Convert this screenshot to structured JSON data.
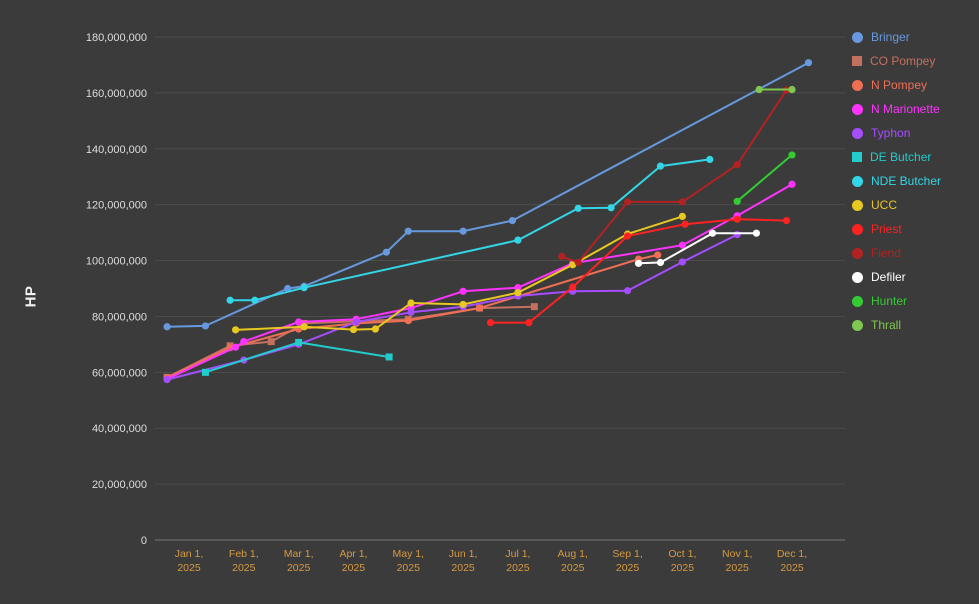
{
  "chart": {
    "background": "#3b3b3b",
    "grid_color": "#4d4d4d",
    "axis_zero_color": "#777777",
    "y_text_color": "#dddddd",
    "x_text_color": "#d79a3f"
  },
  "chart_data": {
    "type": "line",
    "title": "",
    "xlabel": "",
    "ylabel": "HP",
    "ylim": [
      0,
      180000000
    ],
    "ytick_step": 20000000,
    "grid": "horizontal",
    "legend_position": "right",
    "x_unit": "month_index_0_is_jan_1_2025",
    "y_tick_labels": [
      "0",
      "20,000,000",
      "40,000,000",
      "60,000,000",
      "80,000,000",
      "100,000,000",
      "120,000,000",
      "140,000,000",
      "160,000,000",
      "180,000,000"
    ],
    "x_tick_labels": [
      {
        "line1": "Jan 1,",
        "line2": "2025"
      },
      {
        "line1": "Feb 1,",
        "line2": "2025"
      },
      {
        "line1": "Mar 1,",
        "line2": "2025"
      },
      {
        "line1": "Apr 1,",
        "line2": "2025"
      },
      {
        "line1": "May 1,",
        "line2": "2025"
      },
      {
        "line1": "Jun 1,",
        "line2": "2025"
      },
      {
        "line1": "Jul 1,",
        "line2": "2025"
      },
      {
        "line1": "Aug 1,",
        "line2": "2025"
      },
      {
        "line1": "Sep 1,",
        "line2": "2025"
      },
      {
        "line1": "Oct 1,",
        "line2": "2025"
      },
      {
        "line1": "Nov 1,",
        "line2": "2025"
      },
      {
        "line1": "Dec 1,",
        "line2": "2025"
      }
    ],
    "series": [
      {
        "name": "Bringer",
        "color": "#6699dd",
        "marker": "circle",
        "points": [
          [
            -0.4,
            76300000
          ],
          [
            0.3,
            76600000
          ],
          [
            1.8,
            90000000
          ],
          [
            2.1,
            90800000
          ],
          [
            3.6,
            103000000
          ],
          [
            4.0,
            110500000
          ],
          [
            5.0,
            110500000
          ],
          [
            5.9,
            114300000
          ],
          [
            11.3,
            170800000
          ]
        ]
      },
      {
        "name": "CO Pompey",
        "color": "#c4705f",
        "marker": "square",
        "points": [
          [
            -0.4,
            58200000
          ],
          [
            0.75,
            69500000
          ],
          [
            1.5,
            71000000
          ],
          [
            2.1,
            77500000
          ],
          [
            4.0,
            79000000
          ],
          [
            5.3,
            83000000
          ],
          [
            6.3,
            83500000
          ]
        ]
      },
      {
        "name": "N Pompey",
        "color": "#ef6f55",
        "marker": "circle",
        "points": [
          [
            -0.4,
            58000000
          ],
          [
            0.75,
            68800000
          ],
          [
            2.0,
            75500000
          ],
          [
            3.05,
            77500000
          ],
          [
            4.0,
            78500000
          ],
          [
            5.3,
            83000000
          ],
          [
            8.2,
            100500000
          ],
          [
            8.55,
            102000000
          ]
        ]
      },
      {
        "name": "N Marionette",
        "color": "#ff33ff",
        "marker": "circle",
        "points": [
          [
            -0.4,
            57600000
          ],
          [
            0.85,
            69000000
          ],
          [
            1.0,
            71000000
          ],
          [
            2.0,
            78000000
          ],
          [
            3.05,
            79000000
          ],
          [
            4.05,
            83000000
          ],
          [
            5.0,
            89000000
          ],
          [
            6.0,
            90300000
          ],
          [
            7.0,
            99000000
          ],
          [
            9.0,
            105500000
          ],
          [
            10.0,
            116000000
          ],
          [
            11.0,
            127300000
          ]
        ]
      },
      {
        "name": "Typhon",
        "color": "#a64dff",
        "marker": "circle",
        "points": [
          [
            -0.4,
            57400000
          ],
          [
            1.0,
            64400000
          ],
          [
            2.0,
            70000000
          ],
          [
            3.05,
            78000000
          ],
          [
            4.05,
            81500000
          ],
          [
            5.0,
            83500000
          ],
          [
            6.0,
            87300000
          ],
          [
            7.0,
            89000000
          ],
          [
            8.0,
            89200000
          ],
          [
            9.0,
            99500000
          ],
          [
            10.0,
            109300000
          ]
        ]
      },
      {
        "name": "DE Butcher",
        "color": "#22cccc",
        "marker": "square",
        "points": [
          [
            0.3,
            60000000
          ],
          [
            2.0,
            70700000
          ],
          [
            3.65,
            65500000
          ]
        ]
      },
      {
        "name": "NDE Butcher",
        "color": "#33d6e6",
        "marker": "circle",
        "points": [
          [
            0.75,
            85800000
          ],
          [
            1.2,
            85800000
          ],
          [
            2.1,
            90300000
          ],
          [
            6.0,
            107300000
          ],
          [
            7.1,
            118700000
          ],
          [
            7.7,
            118900000
          ],
          [
            8.6,
            133800000
          ],
          [
            9.5,
            136200000
          ]
        ]
      },
      {
        "name": "UCC",
        "color": "#e8c820",
        "marker": "circle",
        "points": [
          [
            0.85,
            75200000
          ],
          [
            2.1,
            76300000
          ],
          [
            3.0,
            75300000
          ],
          [
            3.4,
            75500000
          ],
          [
            4.05,
            84800000
          ],
          [
            5.0,
            84300000
          ],
          [
            6.0,
            88500000
          ],
          [
            7.0,
            98500000
          ],
          [
            8.0,
            109500000
          ],
          [
            9.0,
            115800000
          ]
        ]
      },
      {
        "name": "Priest",
        "color": "#ff2222",
        "marker": "circle",
        "points": [
          [
            5.5,
            77800000
          ],
          [
            6.2,
            77800000
          ],
          [
            7.0,
            90500000
          ],
          [
            8.0,
            108800000
          ],
          [
            9.05,
            113000000
          ],
          [
            10.0,
            114800000
          ],
          [
            10.9,
            114300000
          ]
        ]
      },
      {
        "name": "Fiend",
        "color": "#b22222",
        "marker": "circle",
        "points": [
          [
            6.8,
            101500000
          ],
          [
            7.1,
            99300000
          ],
          [
            8.0,
            121000000
          ],
          [
            9.0,
            121000000
          ],
          [
            10.0,
            134300000
          ],
          [
            10.9,
            161000000
          ]
        ]
      },
      {
        "name": "Defiler",
        "color": "#ffffff",
        "marker": "circle",
        "points": [
          [
            8.2,
            99000000
          ],
          [
            8.6,
            99300000
          ],
          [
            9.55,
            109800000
          ],
          [
            10.35,
            109800000
          ]
        ]
      },
      {
        "name": "Hunter",
        "color": "#33cc33",
        "marker": "circle",
        "points": [
          [
            10.0,
            121200000
          ],
          [
            11.0,
            137800000
          ]
        ]
      },
      {
        "name": "Thrall",
        "color": "#7ec850",
        "marker": "circle",
        "points": [
          [
            10.4,
            161200000
          ],
          [
            11.0,
            161200000
          ]
        ]
      }
    ]
  }
}
